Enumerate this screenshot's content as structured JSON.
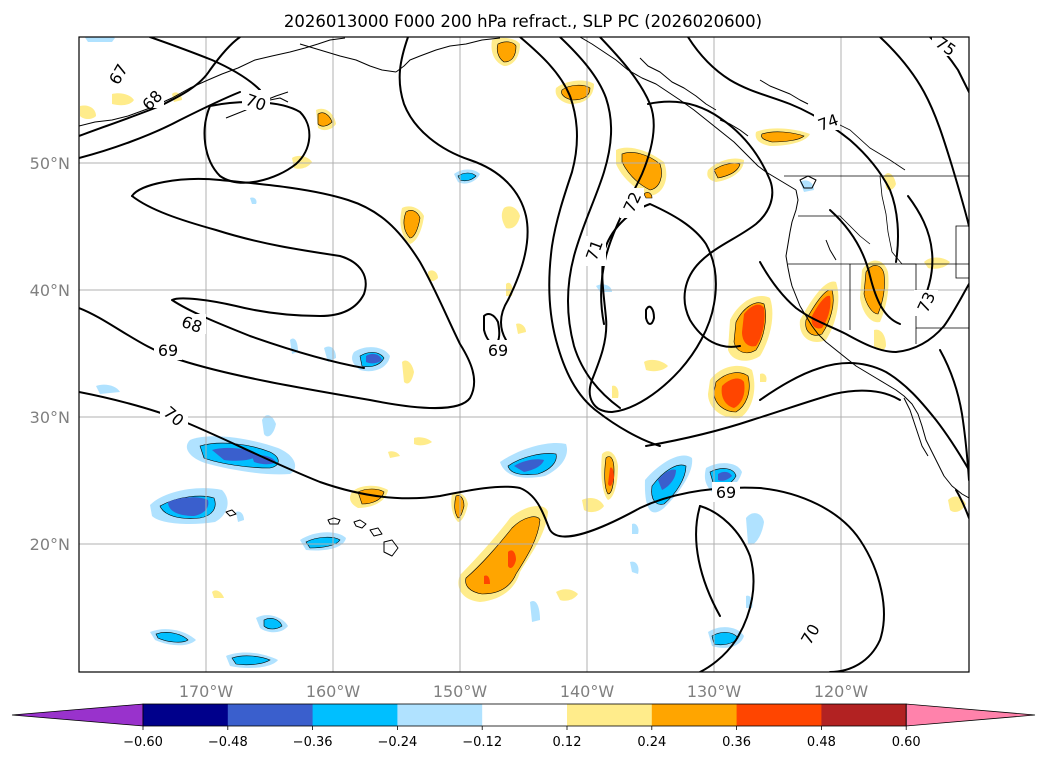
{
  "title": "2026013000 F000 200 hPa refract., SLP PC (2026020600)",
  "longitude_labels": [
    "170°W",
    "160°W",
    "150°W",
    "140°W",
    "130°W",
    "120°W"
  ],
  "latitude_labels": [
    "50°N",
    "40°N",
    "30°N",
    "20°N"
  ],
  "contour_labels": [
    "67",
    "68",
    "70",
    "74",
    "75",
    "72",
    "71",
    "73",
    "68",
    "69",
    "69",
    "70",
    "69",
    "70"
  ],
  "colorbar": {
    "ticks": [
      "−0.60",
      "−0.48",
      "−0.36",
      "−0.24",
      "−0.12",
      "0.12",
      "0.24",
      "0.36",
      "0.48",
      "0.60"
    ],
    "colors": [
      "#9932cc",
      "#00008b",
      "#3a5fcd",
      "#00bfff",
      "#b0e2ff",
      "#ffffff",
      "#ffec8b",
      "#ffa500",
      "#ff4500",
      "#b22222",
      "#ff82ab"
    ]
  },
  "map_colors": {
    "neg_weak": "#b0e2ff",
    "neg_mid": "#00bfff",
    "neg_strong": "#3a5fcd",
    "pos_weak": "#ffec8b",
    "pos_mid": "#ffa500",
    "pos_strong": "#ff4500"
  }
}
